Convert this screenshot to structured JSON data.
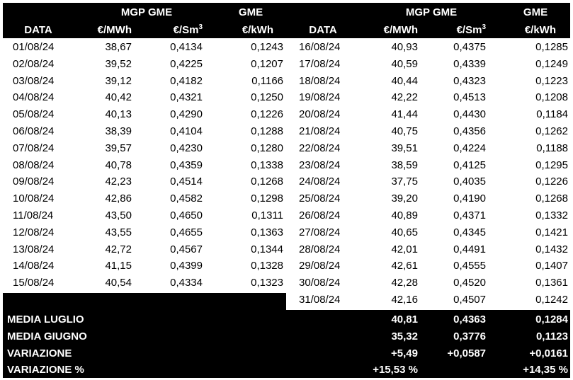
{
  "header": {
    "group_mgp": "MGP GME",
    "group_gme": "GME",
    "col_data": "DATA",
    "col_eur_mwh": "€/MWh",
    "col_eur_sm3_base": "€/Sm",
    "col_eur_sm3_sup": "3",
    "col_eur_kwh": "€/kWh"
  },
  "left_rows": [
    {
      "data": "01/08/24",
      "mwh": "38,67",
      "sm3": "0,4134",
      "kwh": "0,1243"
    },
    {
      "data": "02/08/24",
      "mwh": "39,52",
      "sm3": "0,4225",
      "kwh": "0,1207"
    },
    {
      "data": "03/08/24",
      "mwh": "39,12",
      "sm3": "0,4182",
      "kwh": "0,1166"
    },
    {
      "data": "04/08/24",
      "mwh": "40,42",
      "sm3": "0,4321",
      "kwh": "0,1250"
    },
    {
      "data": "05/08/24",
      "mwh": "40,13",
      "sm3": "0,4290",
      "kwh": "0,1226"
    },
    {
      "data": "06/08/24",
      "mwh": "38,39",
      "sm3": "0,4104",
      "kwh": "0,1288"
    },
    {
      "data": "07/08/24",
      "mwh": "39,57",
      "sm3": "0,4230",
      "kwh": "0,1280"
    },
    {
      "data": "08/08/24",
      "mwh": "40,78",
      "sm3": "0,4359",
      "kwh": "0,1338"
    },
    {
      "data": "09/08/24",
      "mwh": "42,23",
      "sm3": "0,4514",
      "kwh": "0,1268"
    },
    {
      "data": "10/08/24",
      "mwh": "42,86",
      "sm3": "0,4582",
      "kwh": "0,1298"
    },
    {
      "data": "11/08/24",
      "mwh": "43,50",
      "sm3": "0,4650",
      "kwh": "0,1311"
    },
    {
      "data": "12/08/24",
      "mwh": "43,55",
      "sm3": "0,4655",
      "kwh": "0,1363"
    },
    {
      "data": "13/08/24",
      "mwh": "42,72",
      "sm3": "0,4567",
      "kwh": "0,1344"
    },
    {
      "data": "14/08/24",
      "mwh": "41,15",
      "sm3": "0,4399",
      "kwh": "0,1328"
    },
    {
      "data": "15/08/24",
      "mwh": "40,54",
      "sm3": "0,4334",
      "kwh": "0,1323"
    }
  ],
  "right_rows": [
    {
      "data": "16/08/24",
      "mwh": "40,93",
      "sm3": "0,4375",
      "kwh": "0,1285"
    },
    {
      "data": "17/08/24",
      "mwh": "40,59",
      "sm3": "0,4339",
      "kwh": "0,1249"
    },
    {
      "data": "18/08/24",
      "mwh": "40,44",
      "sm3": "0,4323",
      "kwh": "0,1223"
    },
    {
      "data": "19/08/24",
      "mwh": "42,22",
      "sm3": "0,4513",
      "kwh": "0,1208"
    },
    {
      "data": "20/08/24",
      "mwh": "41,44",
      "sm3": "0,4430",
      "kwh": "0,1184"
    },
    {
      "data": "21/08/24",
      "mwh": "40,75",
      "sm3": "0,4356",
      "kwh": "0,1262"
    },
    {
      "data": "22/08/24",
      "mwh": "39,51",
      "sm3": "0,4224",
      "kwh": "0,1188"
    },
    {
      "data": "23/08/24",
      "mwh": "38,59",
      "sm3": "0,4125",
      "kwh": "0,1295"
    },
    {
      "data": "24/08/24",
      "mwh": "37,75",
      "sm3": "0,4035",
      "kwh": "0,1226"
    },
    {
      "data": "25/08/24",
      "mwh": "39,20",
      "sm3": "0,4190",
      "kwh": "0,1268"
    },
    {
      "data": "26/08/24",
      "mwh": "40,89",
      "sm3": "0,4371",
      "kwh": "0,1332"
    },
    {
      "data": "27/08/24",
      "mwh": "40,65",
      "sm3": "0,4345",
      "kwh": "0,1421"
    },
    {
      "data": "28/08/24",
      "mwh": "42,01",
      "sm3": "0,4491",
      "kwh": "0,1432"
    },
    {
      "data": "29/08/24",
      "mwh": "42,61",
      "sm3": "0,4555",
      "kwh": "0,1407"
    },
    {
      "data": "30/08/24",
      "mwh": "42,28",
      "sm3": "0,4520",
      "kwh": "0,1361"
    },
    {
      "data": "31/08/24",
      "mwh": "42,16",
      "sm3": "0,4507",
      "kwh": "0,1242"
    }
  ],
  "summary": [
    {
      "label": "MEDIA LUGLIO",
      "mwh": "40,81",
      "sm3": "0,4363",
      "kwh": "0,1284"
    },
    {
      "label": "MEDIA GIUGNO",
      "mwh": "35,32",
      "sm3": "0,3776",
      "kwh": "0,1123"
    },
    {
      "label": "VARIAZIONE",
      "mwh": "+5,49",
      "sm3": "+0,0587",
      "kwh": "+0,0161"
    },
    {
      "label": "VARIAZIONE %",
      "mwh": "+15,53 %",
      "sm3": "",
      "kwh": "+14,35 %"
    }
  ],
  "colors": {
    "header_bg": "#000000",
    "header_text": "#ffffff",
    "body_text": "#000000"
  }
}
